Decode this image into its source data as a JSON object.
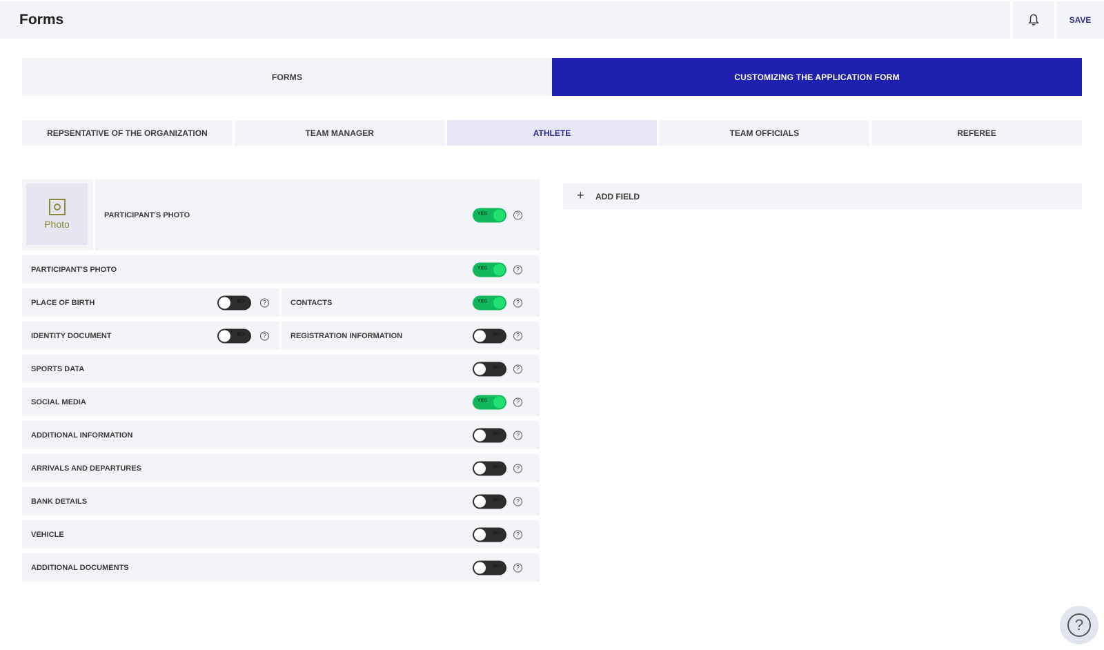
{
  "header": {
    "title": "Forms",
    "bell_icon": "bell-icon",
    "save_label": "SAVE"
  },
  "main_tabs": [
    {
      "label": "FORMS",
      "active": false
    },
    {
      "label": "CUSTOMIZING THE APPLICATION FORM",
      "active": true
    }
  ],
  "sub_tabs": [
    {
      "label": "REPSENTATIVE OF THE ORGANIZATION",
      "active": false
    },
    {
      "label": "TEAM MANAGER",
      "active": false
    },
    {
      "label": "ATHLETE",
      "active": true
    },
    {
      "label": "TEAM OFFICIALS",
      "active": false
    },
    {
      "label": "REFEREE",
      "active": false
    }
  ],
  "photo": {
    "placeholder_label": "Photo",
    "field_label": "PARTICIPANT'S PHOTO",
    "toggle": "YES",
    "enabled": true
  },
  "fields": {
    "participant_photo": {
      "label": "PARTICIPANT'S PHOTO",
      "enabled": true,
      "toggle_text": "YES"
    },
    "place_of_birth": {
      "label": "PLACE OF BIRTH",
      "enabled": false,
      "toggle_text": "NO"
    },
    "contacts": {
      "label": "CONTACTS",
      "enabled": true,
      "toggle_text": "YES"
    },
    "identity_document": {
      "label": "IDENTITY DOCUMENT",
      "enabled": false,
      "toggle_text": "NO"
    },
    "registration_information": {
      "label": "REGISTRATION INFORMATION",
      "enabled": false,
      "toggle_text": "NO"
    },
    "sports_data": {
      "label": "SPORTS DATA",
      "enabled": false,
      "toggle_text": "NO"
    },
    "social_media": {
      "label": "SOCIAL MEDIA",
      "enabled": true,
      "toggle_text": "YES"
    },
    "additional_information": {
      "label": "ADDITIONAL INFORMATION",
      "enabled": false,
      "toggle_text": "NO"
    },
    "arrivals_and_departures": {
      "label": "ARRIVALS AND DEPARTURES",
      "enabled": false,
      "toggle_text": "NO"
    },
    "bank_details": {
      "label": "BANK DETAILS",
      "enabled": false,
      "toggle_text": "NO"
    },
    "vehicle": {
      "label": "VEHICLE",
      "enabled": false,
      "toggle_text": "NO"
    },
    "additional_documents": {
      "label": "ADDITIONAL DOCUMENTS",
      "enabled": false,
      "toggle_text": "NO"
    }
  },
  "add_field": {
    "label": "ADD FIELD",
    "icon": "plus-icon"
  },
  "help_icon_glyph": "?",
  "colors": {
    "accent": "#2020b0",
    "toggle_on": "#0fb85a",
    "toggle_off": "#2c2c2c",
    "panel_bg": "#f3f4f8"
  }
}
